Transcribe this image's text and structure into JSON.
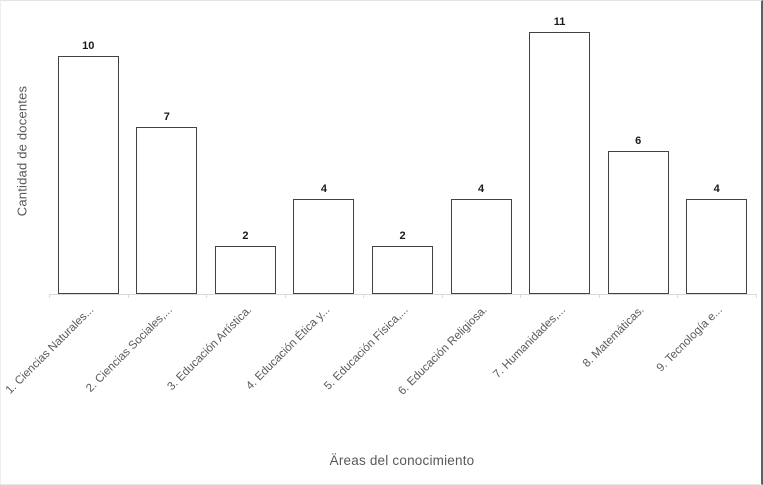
{
  "chart_data": {
    "type": "bar",
    "categories": [
      "1. Ciencias Naturales...",
      "2. Ciencias Sociales,...",
      "3. Educación Artística.",
      "4. Educación Ética y...",
      "5. Educación Física,...",
      "6. Educación Religiosa.",
      "7. Humanidades,...",
      "8. Matemáticas.",
      "9. Tecnología e..."
    ],
    "values": [
      10,
      7,
      2,
      4,
      2,
      4,
      11,
      6,
      4
    ],
    "title": "",
    "xlabel": "Äreas del conocimiento",
    "ylabel": "Cantidad de docentes",
    "ylim": [
      0,
      12
    ],
    "grid": false,
    "legend": "none",
    "data_labels": true,
    "colors": {
      "bar_fill": "#ffffff",
      "bar_outline": "#424242",
      "axis_line": "#d9d9d9",
      "category_text": "#595959",
      "axis_title_text": "#595959",
      "value_label_text": "#1a1a1a"
    }
  }
}
